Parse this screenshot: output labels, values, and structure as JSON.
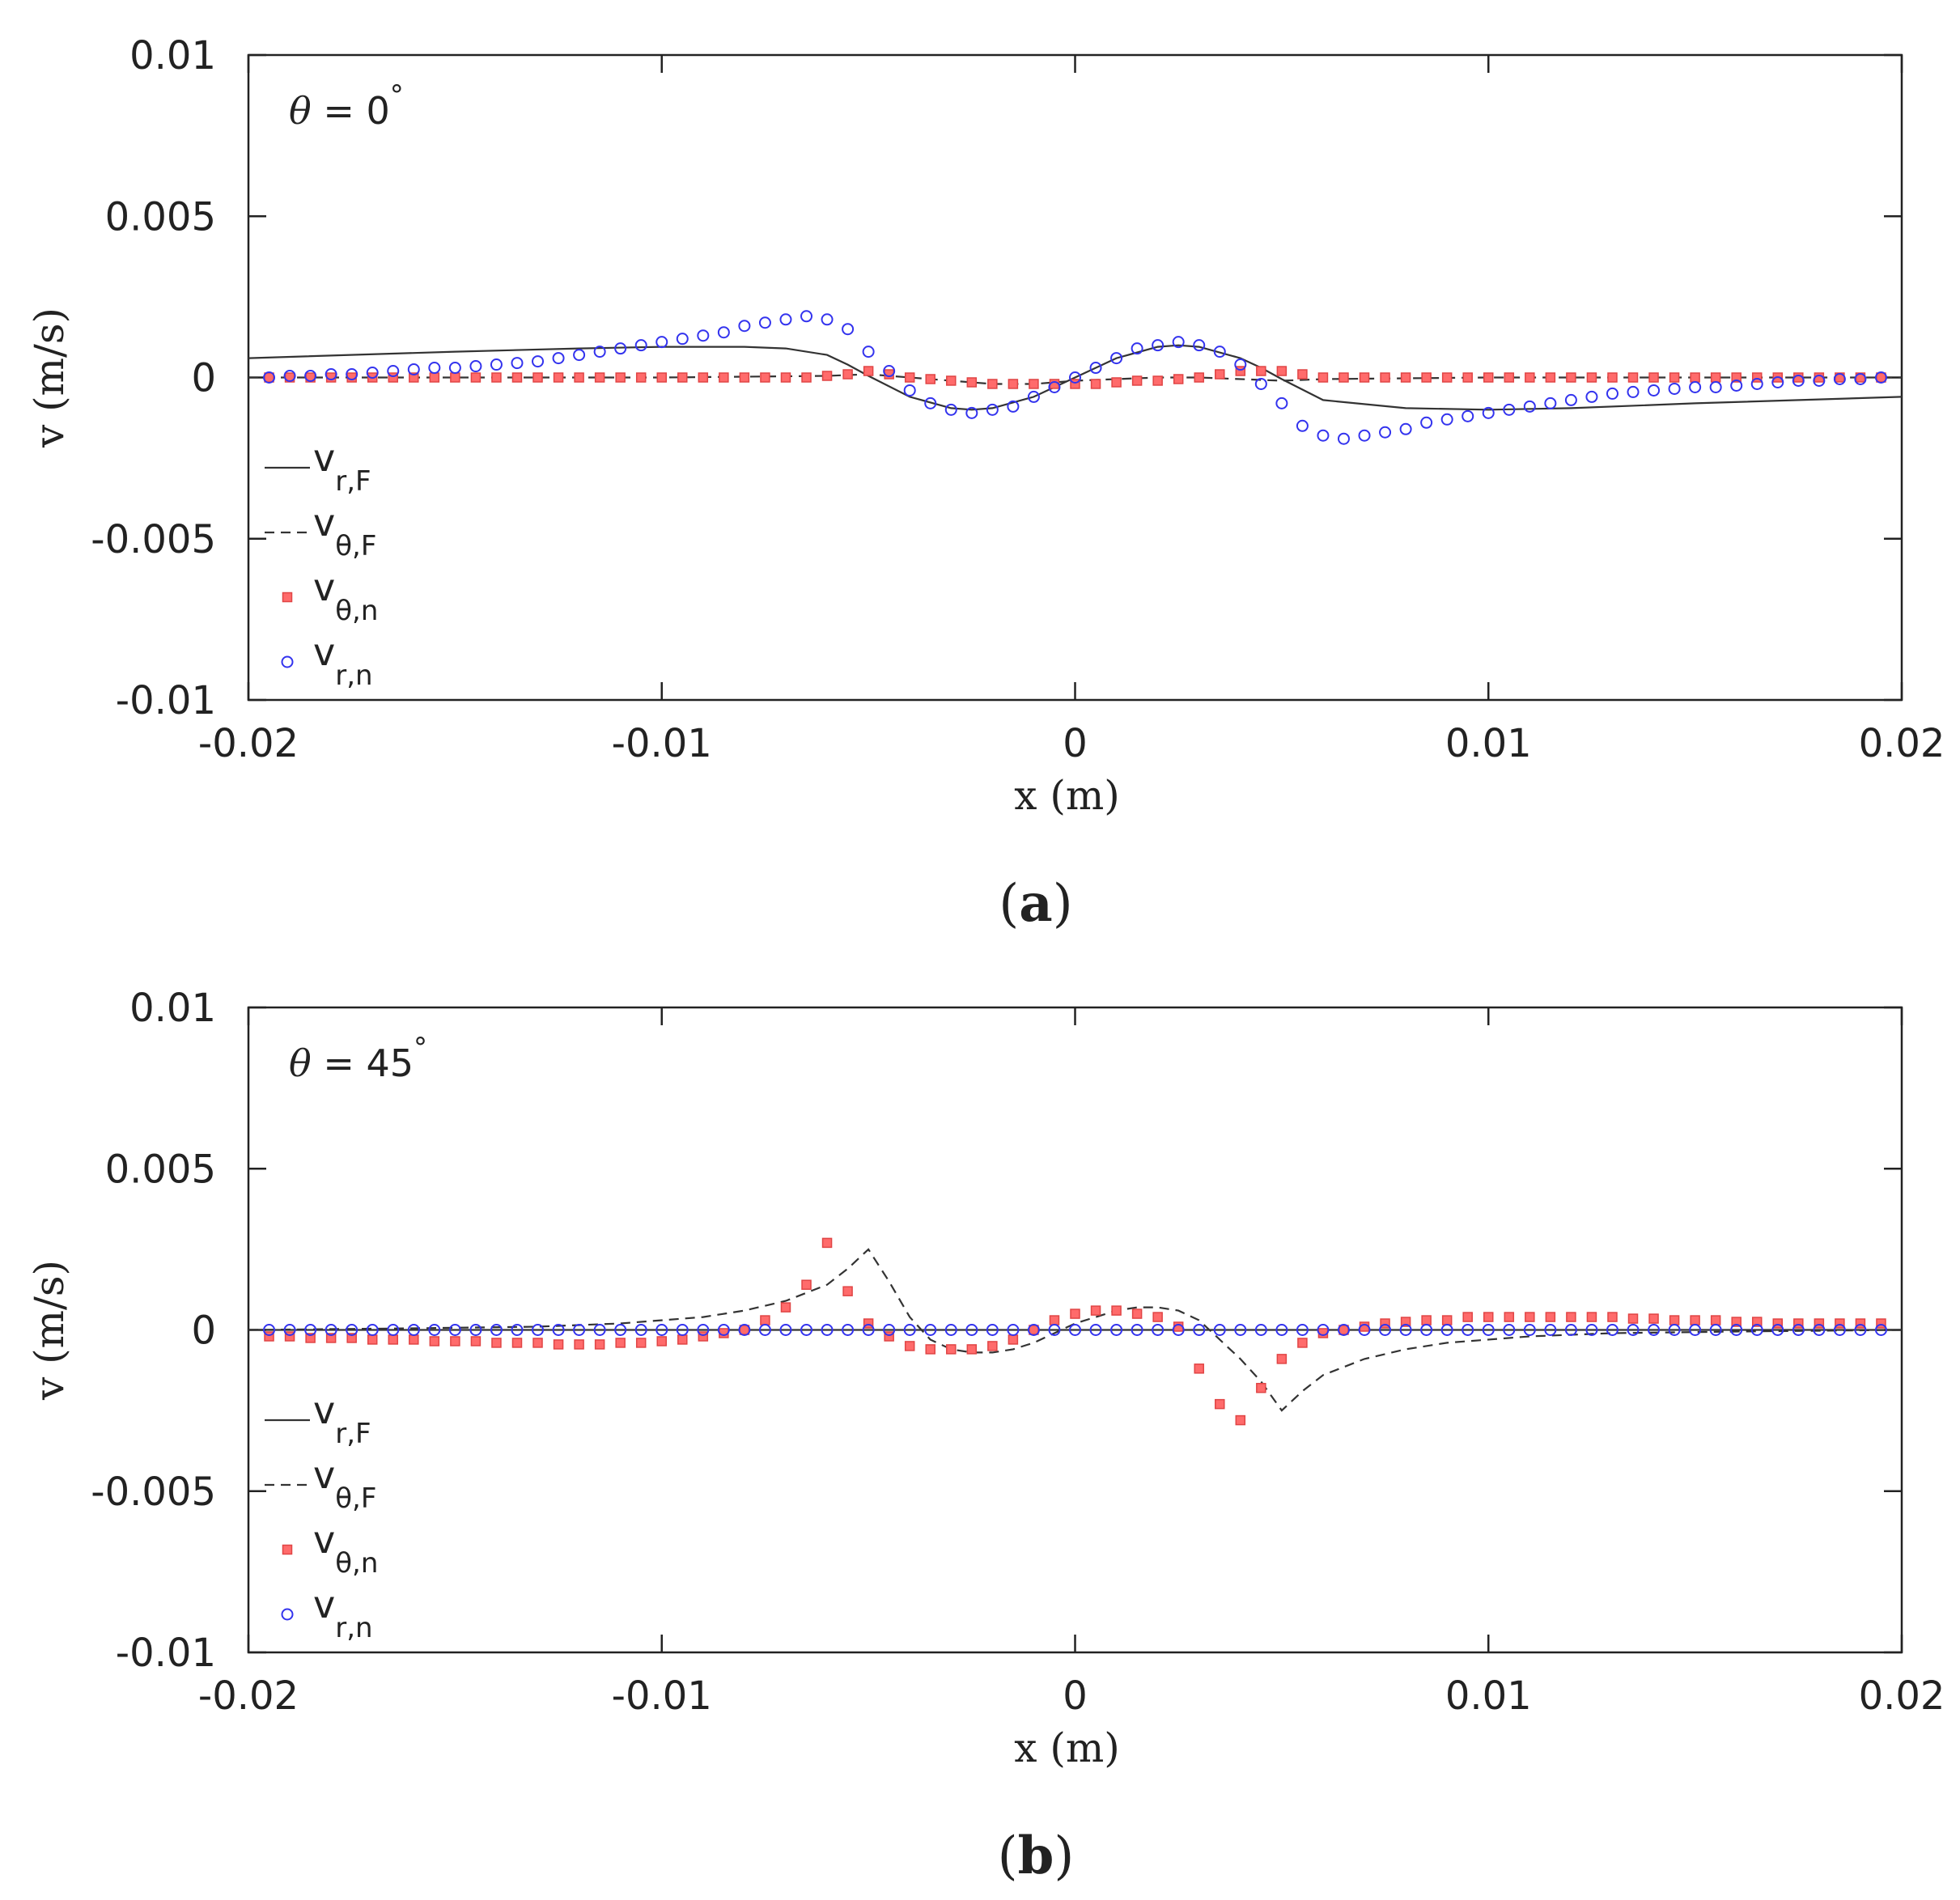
{
  "figure": {
    "caption_a": {
      "open": "(",
      "letter": "a",
      "close": ")"
    },
    "caption_b": {
      "open": "(",
      "letter": "b",
      "close": ")"
    }
  },
  "colors": {
    "axis": "#222222",
    "line": "#333333",
    "square": "#ff6b6b",
    "square_edge": "#e04545",
    "circle": "#3333ee"
  },
  "chart_data": [
    {
      "id": "a",
      "type": "line",
      "annotation": {
        "symbol": "θ",
        "equals": " = 0",
        "degree": "°"
      },
      "xlabel": "x (m)",
      "ylabel": "v (m/s)",
      "xlim": [
        -0.02,
        0.02
      ],
      "ylim": [
        -0.01,
        0.01
      ],
      "xticks": [
        -0.02,
        -0.01,
        0,
        0.01,
        0.02
      ],
      "xtick_labels": [
        "-0.02",
        "-0.01",
        "0",
        "0.01",
        "0.02"
      ],
      "yticks": [
        0.01,
        0.005,
        0,
        -0.005,
        -0.01
      ],
      "ytick_labels": [
        "0.01",
        "0.005",
        "0",
        "-0.005",
        "-0.01"
      ],
      "legend": [
        {
          "key": "vrF",
          "main": "v",
          "sub": "r,F",
          "style": "solid"
        },
        {
          "key": "vthF",
          "main": "v",
          "sub": "θ,F",
          "style": "dashed"
        },
        {
          "key": "vthn",
          "main": "v",
          "sub": "θ,n",
          "style": "square"
        },
        {
          "key": "vrn",
          "main": "v",
          "sub": "r,n",
          "style": "circle"
        }
      ],
      "series": [
        {
          "name": "v_r,F",
          "style": "solid",
          "x": [
            -0.02,
            -0.015,
            -0.012,
            -0.01,
            -0.008,
            -0.007,
            -0.006,
            -0.0055,
            -0.005,
            -0.004,
            -0.003,
            -0.0025,
            -0.002,
            -0.001,
            0,
            0.001,
            0.002,
            0.0025,
            0.003,
            0.004,
            0.0045,
            0.005,
            0.006,
            0.008,
            0.01,
            0.012,
            0.015,
            0.02
          ],
          "y": [
            0.0006,
            0.0008,
            0.0009,
            0.00095,
            0.00095,
            0.0009,
            0.0007,
            0.0004,
            5e-05,
            -0.0006,
            -0.00095,
            -0.001,
            -0.00095,
            -0.0006,
            0,
            0.0006,
            0.00095,
            0.001,
            0.00095,
            0.0006,
            0.0003,
            -5e-05,
            -0.0007,
            -0.00095,
            -0.001,
            -0.00095,
            -0.0008,
            -0.0006
          ]
        },
        {
          "name": "v_θ,F",
          "style": "dashed",
          "x": [
            -0.02,
            -0.01,
            -0.006,
            -0.005,
            -0.003,
            -0.002,
            -0.001,
            0,
            0.001,
            0.002,
            0.003,
            0.005,
            0.006,
            0.01,
            0.02
          ],
          "y": [
            0,
            0,
            5e-05,
            0.0001,
            -0.0001,
            -0.0002,
            -0.0002,
            -0.0001,
            -5e-05,
            0,
            0,
            -0.0001,
            -5e-05,
            0,
            0
          ]
        },
        {
          "name": "v_θ,n",
          "style": "square",
          "x": [
            -0.0195,
            -0.019,
            -0.0185,
            -0.018,
            -0.0175,
            -0.017,
            -0.0165,
            -0.016,
            -0.0155,
            -0.015,
            -0.0145,
            -0.014,
            -0.0135,
            -0.013,
            -0.0125,
            -0.012,
            -0.0115,
            -0.011,
            -0.0105,
            -0.01,
            -0.0095,
            -0.009,
            -0.0085,
            -0.008,
            -0.0075,
            -0.007,
            -0.0065,
            -0.006,
            -0.0055,
            -0.005,
            -0.0045,
            -0.004,
            -0.0035,
            -0.003,
            -0.0025,
            -0.002,
            -0.0015,
            -0.001,
            -0.0005,
            0,
            0.0005,
            0.001,
            0.0015,
            0.002,
            0.0025,
            0.003,
            0.0035,
            0.004,
            0.0045,
            0.005,
            0.0055,
            0.006,
            0.0065,
            0.007,
            0.0075,
            0.008,
            0.0085,
            0.009,
            0.0095,
            0.01,
            0.0105,
            0.011,
            0.0115,
            0.012,
            0.0125,
            0.013,
            0.0135,
            0.014,
            0.0145,
            0.015,
            0.0155,
            0.016,
            0.0165,
            0.017,
            0.0175,
            0.018,
            0.0185,
            0.019,
            0.0195
          ],
          "y": [
            0,
            0,
            0,
            0,
            0,
            0,
            0,
            0,
            0,
            0,
            0,
            0,
            0,
            0,
            0,
            0,
            0,
            0,
            0,
            0,
            0,
            0,
            0,
            0,
            0,
            0,
            0,
            5e-05,
            0.0001,
            0.0002,
            0.0001,
            0,
            -5e-05,
            -0.0001,
            -0.00015,
            -0.0002,
            -0.0002,
            -0.0002,
            -0.0002,
            -0.0002,
            -0.0002,
            -0.00015,
            -0.0001,
            -0.0001,
            -5e-05,
            0,
            0.0001,
            0.0002,
            0.0002,
            0.0002,
            0.0001,
            0,
            0,
            0,
            0,
            0,
            0,
            0,
            0,
            0,
            0,
            0,
            0,
            0,
            0,
            0,
            0,
            0,
            0,
            0,
            0,
            0,
            0,
            0,
            0,
            0,
            0,
            0,
            0
          ]
        },
        {
          "name": "v_r,n",
          "style": "circle",
          "x": [
            -0.0195,
            -0.019,
            -0.0185,
            -0.018,
            -0.0175,
            -0.017,
            -0.0165,
            -0.016,
            -0.0155,
            -0.015,
            -0.0145,
            -0.014,
            -0.0135,
            -0.013,
            -0.0125,
            -0.012,
            -0.0115,
            -0.011,
            -0.0105,
            -0.01,
            -0.0095,
            -0.009,
            -0.0085,
            -0.008,
            -0.0075,
            -0.007,
            -0.0065,
            -0.006,
            -0.0055,
            -0.005,
            -0.0045,
            -0.004,
            -0.0035,
            -0.003,
            -0.0025,
            -0.002,
            -0.0015,
            -0.001,
            -0.0005,
            0,
            0.0005,
            0.001,
            0.0015,
            0.002,
            0.0025,
            0.003,
            0.0035,
            0.004,
            0.0045,
            0.005,
            0.0055,
            0.006,
            0.0065,
            0.007,
            0.0075,
            0.008,
            0.0085,
            0.009,
            0.0095,
            0.01,
            0.0105,
            0.011,
            0.0115,
            0.012,
            0.0125,
            0.013,
            0.0135,
            0.014,
            0.0145,
            0.015,
            0.0155,
            0.016,
            0.0165,
            0.017,
            0.0175,
            0.018,
            0.0185,
            0.019,
            0.0195
          ],
          "y": [
            0,
            5e-05,
            5e-05,
            0.0001,
            0.0001,
            0.00015,
            0.0002,
            0.00025,
            0.0003,
            0.0003,
            0.00035,
            0.0004,
            0.00045,
            0.0005,
            0.0006,
            0.0007,
            0.0008,
            0.0009,
            0.001,
            0.0011,
            0.0012,
            0.0013,
            0.0014,
            0.0016,
            0.0017,
            0.0018,
            0.0019,
            0.0018,
            0.0015,
            0.0008,
            0.0002,
            -0.0004,
            -0.0008,
            -0.001,
            -0.0011,
            -0.001,
            -0.0009,
            -0.0006,
            -0.0003,
            0,
            0.0003,
            0.0006,
            0.0009,
            0.001,
            0.0011,
            0.001,
            0.0008,
            0.0004,
            -0.0002,
            -0.0008,
            -0.0015,
            -0.0018,
            -0.0019,
            -0.0018,
            -0.0017,
            -0.0016,
            -0.0014,
            -0.0013,
            -0.0012,
            -0.0011,
            -0.001,
            -0.0009,
            -0.0008,
            -0.0007,
            -0.0006,
            -0.0005,
            -0.00045,
            -0.0004,
            -0.00035,
            -0.0003,
            -0.0003,
            -0.00025,
            -0.0002,
            -0.00015,
            -0.0001,
            -0.0001,
            -5e-05,
            -5e-05,
            0
          ]
        }
      ]
    },
    {
      "id": "b",
      "type": "line",
      "annotation": {
        "symbol": "θ",
        "equals": " = 45",
        "degree": "°"
      },
      "xlabel": "x (m)",
      "ylabel": "v (m/s)",
      "xlim": [
        -0.02,
        0.02
      ],
      "ylim": [
        -0.01,
        0.01
      ],
      "xticks": [
        -0.02,
        -0.01,
        0,
        0.01,
        0.02
      ],
      "xtick_labels": [
        "-0.02",
        "-0.01",
        "0",
        "0.01",
        "0.02"
      ],
      "yticks": [
        0.01,
        0.005,
        0,
        -0.005,
        -0.01
      ],
      "ytick_labels": [
        "0.01",
        "0.005",
        "0",
        "-0.005",
        "-0.01"
      ],
      "legend": [
        {
          "key": "vrF",
          "main": "v",
          "sub": "r,F",
          "style": "solid"
        },
        {
          "key": "vthF",
          "main": "v",
          "sub": "θ,F",
          "style": "dashed"
        },
        {
          "key": "vthn",
          "main": "v",
          "sub": "θ,n",
          "style": "square"
        },
        {
          "key": "vrn",
          "main": "v",
          "sub": "r,n",
          "style": "circle"
        }
      ],
      "series": [
        {
          "name": "v_r,F",
          "style": "solid",
          "x": [
            -0.02,
            0.02
          ],
          "y": [
            0,
            0
          ]
        },
        {
          "name": "v_θ,F",
          "style": "dashed",
          "x": [
            -0.02,
            -0.016,
            -0.013,
            -0.011,
            -0.009,
            -0.008,
            -0.007,
            -0.006,
            -0.0055,
            -0.005,
            -0.0045,
            -0.004,
            -0.0035,
            -0.003,
            -0.0025,
            -0.002,
            -0.0015,
            -0.001,
            -0.0005,
            0,
            0.0005,
            0.001,
            0.0015,
            0.002,
            0.0025,
            0.003,
            0.0035,
            0.004,
            0.0045,
            0.005,
            0.0055,
            0.006,
            0.007,
            0.008,
            0.009,
            0.011,
            0.013,
            0.016,
            0.02
          ],
          "y": [
            0,
            5e-05,
            0.0001,
            0.0002,
            0.0004,
            0.0006,
            0.0009,
            0.0014,
            0.0019,
            0.0025,
            0.0015,
            0.0004,
            -0.0003,
            -0.0006,
            -0.0007,
            -0.0007,
            -0.0006,
            -0.0004,
            -0.0001,
            0.0002,
            0.0004,
            0.0006,
            0.0007,
            0.0007,
            0.0006,
            0.0003,
            -0.0003,
            -0.0009,
            -0.0016,
            -0.0025,
            -0.0019,
            -0.0014,
            -0.0009,
            -0.0006,
            -0.0004,
            -0.0002,
            -0.0001,
            -5e-05,
            0
          ]
        },
        {
          "name": "v_θ,n",
          "style": "square",
          "x": [
            -0.0195,
            -0.019,
            -0.0185,
            -0.018,
            -0.0175,
            -0.017,
            -0.0165,
            -0.016,
            -0.0155,
            -0.015,
            -0.0145,
            -0.014,
            -0.0135,
            -0.013,
            -0.0125,
            -0.012,
            -0.0115,
            -0.011,
            -0.0105,
            -0.01,
            -0.0095,
            -0.009,
            -0.0085,
            -0.008,
            -0.0075,
            -0.007,
            -0.0065,
            -0.006,
            -0.0055,
            -0.005,
            -0.0045,
            -0.004,
            -0.0035,
            -0.003,
            -0.0025,
            -0.002,
            -0.0015,
            -0.001,
            -0.0005,
            0,
            0.0005,
            0.001,
            0.0015,
            0.002,
            0.0025,
            0.003,
            0.0035,
            0.004,
            0.0045,
            0.005,
            0.0055,
            0.006,
            0.0065,
            0.007,
            0.0075,
            0.008,
            0.0085,
            0.009,
            0.0095,
            0.01,
            0.0105,
            0.011,
            0.0115,
            0.012,
            0.0125,
            0.013,
            0.0135,
            0.014,
            0.0145,
            0.015,
            0.0155,
            0.016,
            0.0165,
            0.017,
            0.0175,
            0.018,
            0.0185,
            0.019,
            0.0195
          ],
          "y": [
            -0.0002,
            -0.0002,
            -0.00025,
            -0.00025,
            -0.00025,
            -0.0003,
            -0.0003,
            -0.0003,
            -0.00035,
            -0.00035,
            -0.00035,
            -0.0004,
            -0.0004,
            -0.0004,
            -0.00045,
            -0.00045,
            -0.00045,
            -0.0004,
            -0.0004,
            -0.00035,
            -0.0003,
            -0.0002,
            -0.0001,
            0,
            0.0003,
            0.0007,
            0.0014,
            0.0027,
            0.0012,
            0.0002,
            -0.0002,
            -0.0005,
            -0.0006,
            -0.0006,
            -0.0006,
            -0.0005,
            -0.0003,
            0,
            0.0003,
            0.0005,
            0.0006,
            0.0006,
            0.0005,
            0.0004,
            0.0001,
            -0.0012,
            -0.0023,
            -0.0028,
            -0.0018,
            -0.0009,
            -0.0004,
            -0.0001,
            0,
            0.0001,
            0.0002,
            0.00025,
            0.0003,
            0.0003,
            0.0004,
            0.0004,
            0.0004,
            0.0004,
            0.0004,
            0.0004,
            0.0004,
            0.0004,
            0.00035,
            0.00035,
            0.0003,
            0.0003,
            0.0003,
            0.00025,
            0.00025,
            0.0002,
            0.0002,
            0.0002,
            0.0002,
            0.0002,
            0.0002
          ]
        },
        {
          "name": "v_r,n",
          "style": "circle",
          "x": [
            -0.0195,
            -0.019,
            -0.0185,
            -0.018,
            -0.0175,
            -0.017,
            -0.0165,
            -0.016,
            -0.0155,
            -0.015,
            -0.0145,
            -0.014,
            -0.0135,
            -0.013,
            -0.0125,
            -0.012,
            -0.0115,
            -0.011,
            -0.0105,
            -0.01,
            -0.0095,
            -0.009,
            -0.0085,
            -0.008,
            -0.0075,
            -0.007,
            -0.0065,
            -0.006,
            -0.0055,
            -0.005,
            -0.0045,
            -0.004,
            -0.0035,
            -0.003,
            -0.0025,
            -0.002,
            -0.0015,
            -0.001,
            -0.0005,
            0,
            0.0005,
            0.001,
            0.0015,
            0.002,
            0.0025,
            0.003,
            0.0035,
            0.004,
            0.0045,
            0.005,
            0.0055,
            0.006,
            0.0065,
            0.007,
            0.0075,
            0.008,
            0.0085,
            0.009,
            0.0095,
            0.01,
            0.0105,
            0.011,
            0.0115,
            0.012,
            0.0125,
            0.013,
            0.0135,
            0.014,
            0.0145,
            0.015,
            0.0155,
            0.016,
            0.0165,
            0.017,
            0.0175,
            0.018,
            0.0185,
            0.019,
            0.0195
          ],
          "y": [
            0,
            0,
            0,
            0,
            0,
            0,
            0,
            0,
            0,
            0,
            0,
            0,
            0,
            0,
            0,
            0,
            0,
            0,
            0,
            0,
            0,
            0,
            0,
            0,
            0,
            0,
            0,
            0,
            0,
            0,
            0,
            0,
            0,
            0,
            0,
            0,
            0,
            0,
            0,
            0,
            0,
            0,
            0,
            0,
            0,
            0,
            0,
            0,
            0,
            0,
            0,
            0,
            0,
            0,
            0,
            0,
            0,
            0,
            0,
            0,
            0,
            0,
            0,
            0,
            0,
            0,
            0,
            0,
            0,
            0,
            0,
            0,
            0,
            0,
            0,
            0,
            0,
            0,
            0
          ]
        }
      ]
    }
  ]
}
